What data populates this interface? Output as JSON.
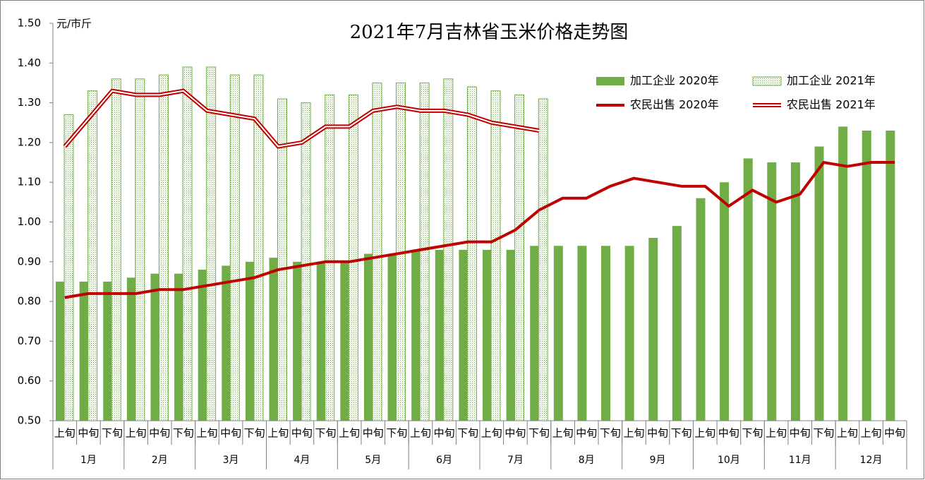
{
  "chart_data": {
    "type": "bar_line",
    "title": "2021年7月吉林省玉米价格走势图",
    "y_label": "元/市斤",
    "categories": [
      "上旬",
      "中旬",
      "下旬",
      "上旬",
      "中旬",
      "下旬",
      "上旬",
      "中旬",
      "下旬",
      "上旬",
      "中旬",
      "下旬",
      "上旬",
      "中旬",
      "下旬",
      "上旬",
      "中旬",
      "下旬",
      "上旬",
      "中旬",
      "下旬",
      "上旬",
      "中旬",
      "下旬",
      "上旬",
      "中旬",
      "下旬",
      "上旬",
      "中旬",
      "下旬",
      "上旬",
      "中旬",
      "下旬",
      "上旬",
      "上旬",
      "中旬"
    ],
    "groups": [
      "1月",
      "2月",
      "3月",
      "4月",
      "5月",
      "6月",
      "7月",
      "8月",
      "9月",
      "10月",
      "11月",
      "12月"
    ],
    "ylim": [
      0.5,
      1.5
    ],
    "yticks": [
      {
        "value": 0.5,
        "label": "0.50"
      },
      {
        "value": 0.6,
        "label": "0.60"
      },
      {
        "value": 0.7,
        "label": "0.70"
      },
      {
        "value": 0.8,
        "label": "0.80"
      },
      {
        "value": 0.9,
        "label": "0.90"
      },
      {
        "value": 1.0,
        "label": "1.00"
      },
      {
        "value": 1.1,
        "label": "1.10"
      },
      {
        "value": 1.2,
        "label": "1.20"
      },
      {
        "value": 1.3,
        "label": "1.30"
      },
      {
        "value": 1.4,
        "label": "1.40"
      },
      {
        "value": 1.5,
        "label": "1.50"
      }
    ],
    "legend": "top-right",
    "series": [
      {
        "name": "加工企业 2020年",
        "kind": "bar",
        "color": "#70ad47",
        "values": [
          0.85,
          0.85,
          0.85,
          0.86,
          0.87,
          0.87,
          0.88,
          0.89,
          0.9,
          0.91,
          0.9,
          0.9,
          0.9,
          0.92,
          0.92,
          0.93,
          0.93,
          0.93,
          0.93,
          0.93,
          0.94,
          0.94,
          0.94,
          0.94,
          0.94,
          0.96,
          0.99,
          1.06,
          1.1,
          1.16,
          1.15,
          1.15,
          1.19,
          1.24,
          1.23,
          1.23
        ]
      },
      {
        "name": "加工企业 2021年",
        "kind": "bar-pattern",
        "color": "#70ad47",
        "values": [
          1.27,
          1.33,
          1.36,
          1.36,
          1.37,
          1.39,
          1.39,
          1.37,
          1.37,
          1.31,
          1.3,
          1.32,
          1.32,
          1.35,
          1.35,
          1.35,
          1.36,
          1.34,
          1.33,
          1.32,
          1.31,
          null,
          null,
          null,
          null,
          null,
          null,
          null,
          null,
          null,
          null,
          null,
          null,
          null,
          null,
          null
        ]
      },
      {
        "name": "农民出售 2020年",
        "kind": "line",
        "color": "#c00000",
        "values": [
          0.81,
          0.82,
          0.82,
          0.82,
          0.83,
          0.83,
          0.84,
          0.85,
          0.86,
          0.88,
          0.89,
          0.9,
          0.9,
          0.91,
          0.92,
          0.93,
          0.94,
          0.95,
          0.95,
          0.98,
          1.03,
          1.06,
          1.06,
          1.09,
          1.11,
          1.1,
          1.09,
          1.09,
          1.04,
          1.08,
          1.05,
          1.07,
          1.15,
          1.14,
          1.15,
          1.15
        ]
      },
      {
        "name": "农民出售 2021年",
        "kind": "line-double",
        "color": "#c00000",
        "values": [
          1.19,
          1.26,
          1.33,
          1.32,
          1.32,
          1.33,
          1.28,
          1.27,
          1.26,
          1.19,
          1.2,
          1.24,
          1.24,
          1.28,
          1.29,
          1.28,
          1.28,
          1.27,
          1.25,
          1.24,
          1.23,
          null,
          null,
          null,
          null,
          null,
          null,
          null,
          null,
          null,
          null,
          null,
          null,
          null,
          null,
          null
        ]
      }
    ]
  }
}
